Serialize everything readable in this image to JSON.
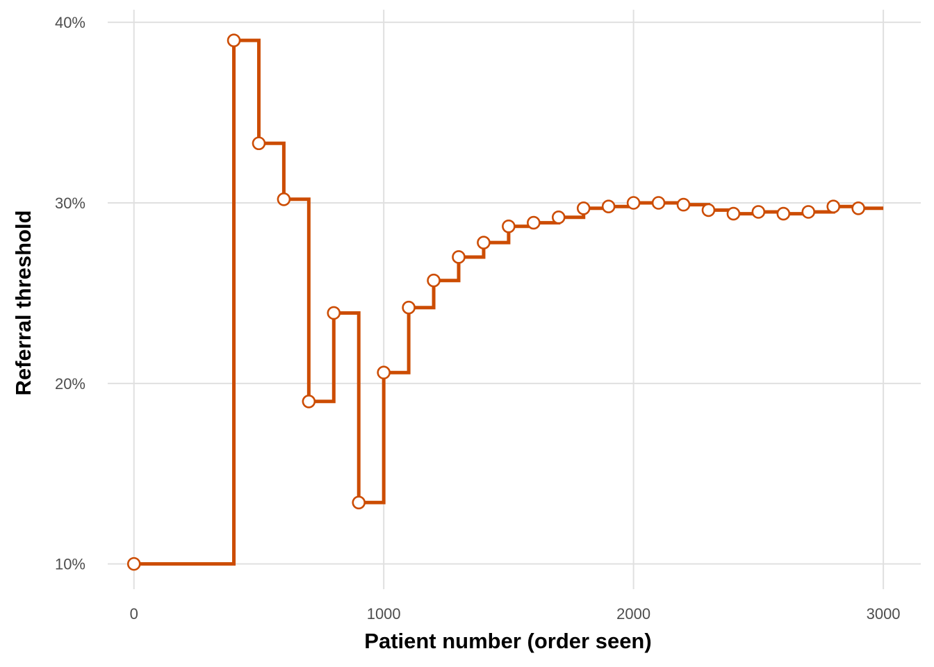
{
  "chart_data": {
    "type": "line",
    "step": true,
    "xlabel": "Patient number (order seen)",
    "ylabel": "Referral threshold",
    "xlim": [
      -105,
      3150
    ],
    "ylim": [
      8.6,
      40.7
    ],
    "x_ticks": [
      0,
      1000,
      2000,
      3000
    ],
    "x_tick_labels": [
      "0",
      "1000",
      "2000",
      "3000"
    ],
    "y_ticks": [
      10,
      20,
      30,
      40
    ],
    "y_tick_labels": [
      "10%",
      "20%",
      "30%",
      "40%"
    ],
    "grid": true,
    "line_end_x": 3000,
    "color": "#cc4c02",
    "points": [
      {
        "x": 0,
        "y": 10.0
      },
      {
        "x": 400,
        "y": 39.0
      },
      {
        "x": 500,
        "y": 33.3
      },
      {
        "x": 600,
        "y": 30.2
      },
      {
        "x": 700,
        "y": 19.0
      },
      {
        "x": 800,
        "y": 23.9
      },
      {
        "x": 900,
        "y": 13.4
      },
      {
        "x": 1000,
        "y": 20.6
      },
      {
        "x": 1100,
        "y": 24.2
      },
      {
        "x": 1200,
        "y": 25.7
      },
      {
        "x": 1300,
        "y": 27.0
      },
      {
        "x": 1400,
        "y": 27.8
      },
      {
        "x": 1500,
        "y": 28.7
      },
      {
        "x": 1600,
        "y": 28.9
      },
      {
        "x": 1700,
        "y": 29.2
      },
      {
        "x": 1800,
        "y": 29.7
      },
      {
        "x": 1900,
        "y": 29.8
      },
      {
        "x": 2000,
        "y": 30.0
      },
      {
        "x": 2100,
        "y": 30.0
      },
      {
        "x": 2200,
        "y": 29.9
      },
      {
        "x": 2300,
        "y": 29.6
      },
      {
        "x": 2400,
        "y": 29.4
      },
      {
        "x": 2500,
        "y": 29.5
      },
      {
        "x": 2600,
        "y": 29.4
      },
      {
        "x": 2700,
        "y": 29.5
      },
      {
        "x": 2800,
        "y": 29.8
      },
      {
        "x": 2900,
        "y": 29.7
      }
    ]
  }
}
